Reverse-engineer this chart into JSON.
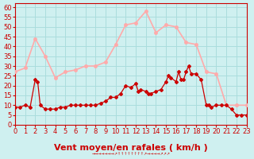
{
  "title": "",
  "xlabel": "Vent moyen/en rafales ( km/h )",
  "bg_color": "#cff0f0",
  "grid_color": "#aadddd",
  "xlim": [
    0,
    23
  ],
  "ylim": [
    0,
    62
  ],
  "yticks": [
    0,
    5,
    10,
    15,
    20,
    25,
    30,
    35,
    40,
    45,
    50,
    55,
    60
  ],
  "xticks": [
    0,
    1,
    2,
    3,
    4,
    5,
    6,
    7,
    8,
    9,
    10,
    11,
    12,
    13,
    14,
    15,
    16,
    17,
    18,
    19,
    20,
    21,
    22,
    23
  ],
  "rafales_x": [
    0,
    1,
    2,
    3,
    4,
    5,
    6,
    7,
    8,
    9,
    10,
    11,
    12,
    13,
    14,
    15,
    16,
    17,
    18,
    19,
    20,
    21,
    22,
    23
  ],
  "rafales_y": [
    27,
    29,
    44,
    35,
    24,
    27,
    28,
    30,
    30,
    32,
    41,
    51,
    52,
    58,
    47,
    51,
    50,
    42,
    41,
    27,
    26,
    10,
    10,
    10
  ],
  "moy_x": [
    0,
    0.5,
    1,
    1.5,
    2,
    2.25,
    2.5,
    3,
    3.5,
    4,
    4.5,
    5,
    5.5,
    6,
    6.5,
    7,
    7.5,
    8,
    8.5,
    9,
    9.5,
    10,
    10.5,
    11,
    11.5,
    12,
    12.25,
    12.5,
    13,
    13.25,
    13.5,
    14,
    14.5,
    15,
    15.25,
    15.5,
    16,
    16.25,
    16.5,
    16.75,
    17,
    17.25,
    17.5,
    18,
    18.5,
    19,
    19.25,
    19.5,
    20,
    20.5,
    21,
    21.5,
    22,
    22.5,
    23
  ],
  "moy_y": [
    9,
    9,
    10,
    9,
    23,
    22,
    10,
    8,
    8,
    8,
    9,
    9,
    10,
    10,
    10,
    10,
    10,
    10,
    11,
    12,
    14,
    14,
    16,
    20,
    19,
    21,
    17,
    18,
    17,
    16,
    16,
    17,
    18,
    22,
    25,
    24,
    22,
    27,
    23,
    23,
    27,
    30,
    26,
    26,
    23,
    10,
    10,
    9,
    10,
    10,
    10,
    8,
    5,
    5,
    5
  ],
  "rafales_color": "#ffaaaa",
  "moy_color": "#cc0000",
  "xlabel_color": "#cc0000",
  "tick_color": "#cc0000",
  "xlabel_fontsize": 8,
  "tick_fontsize": 6
}
